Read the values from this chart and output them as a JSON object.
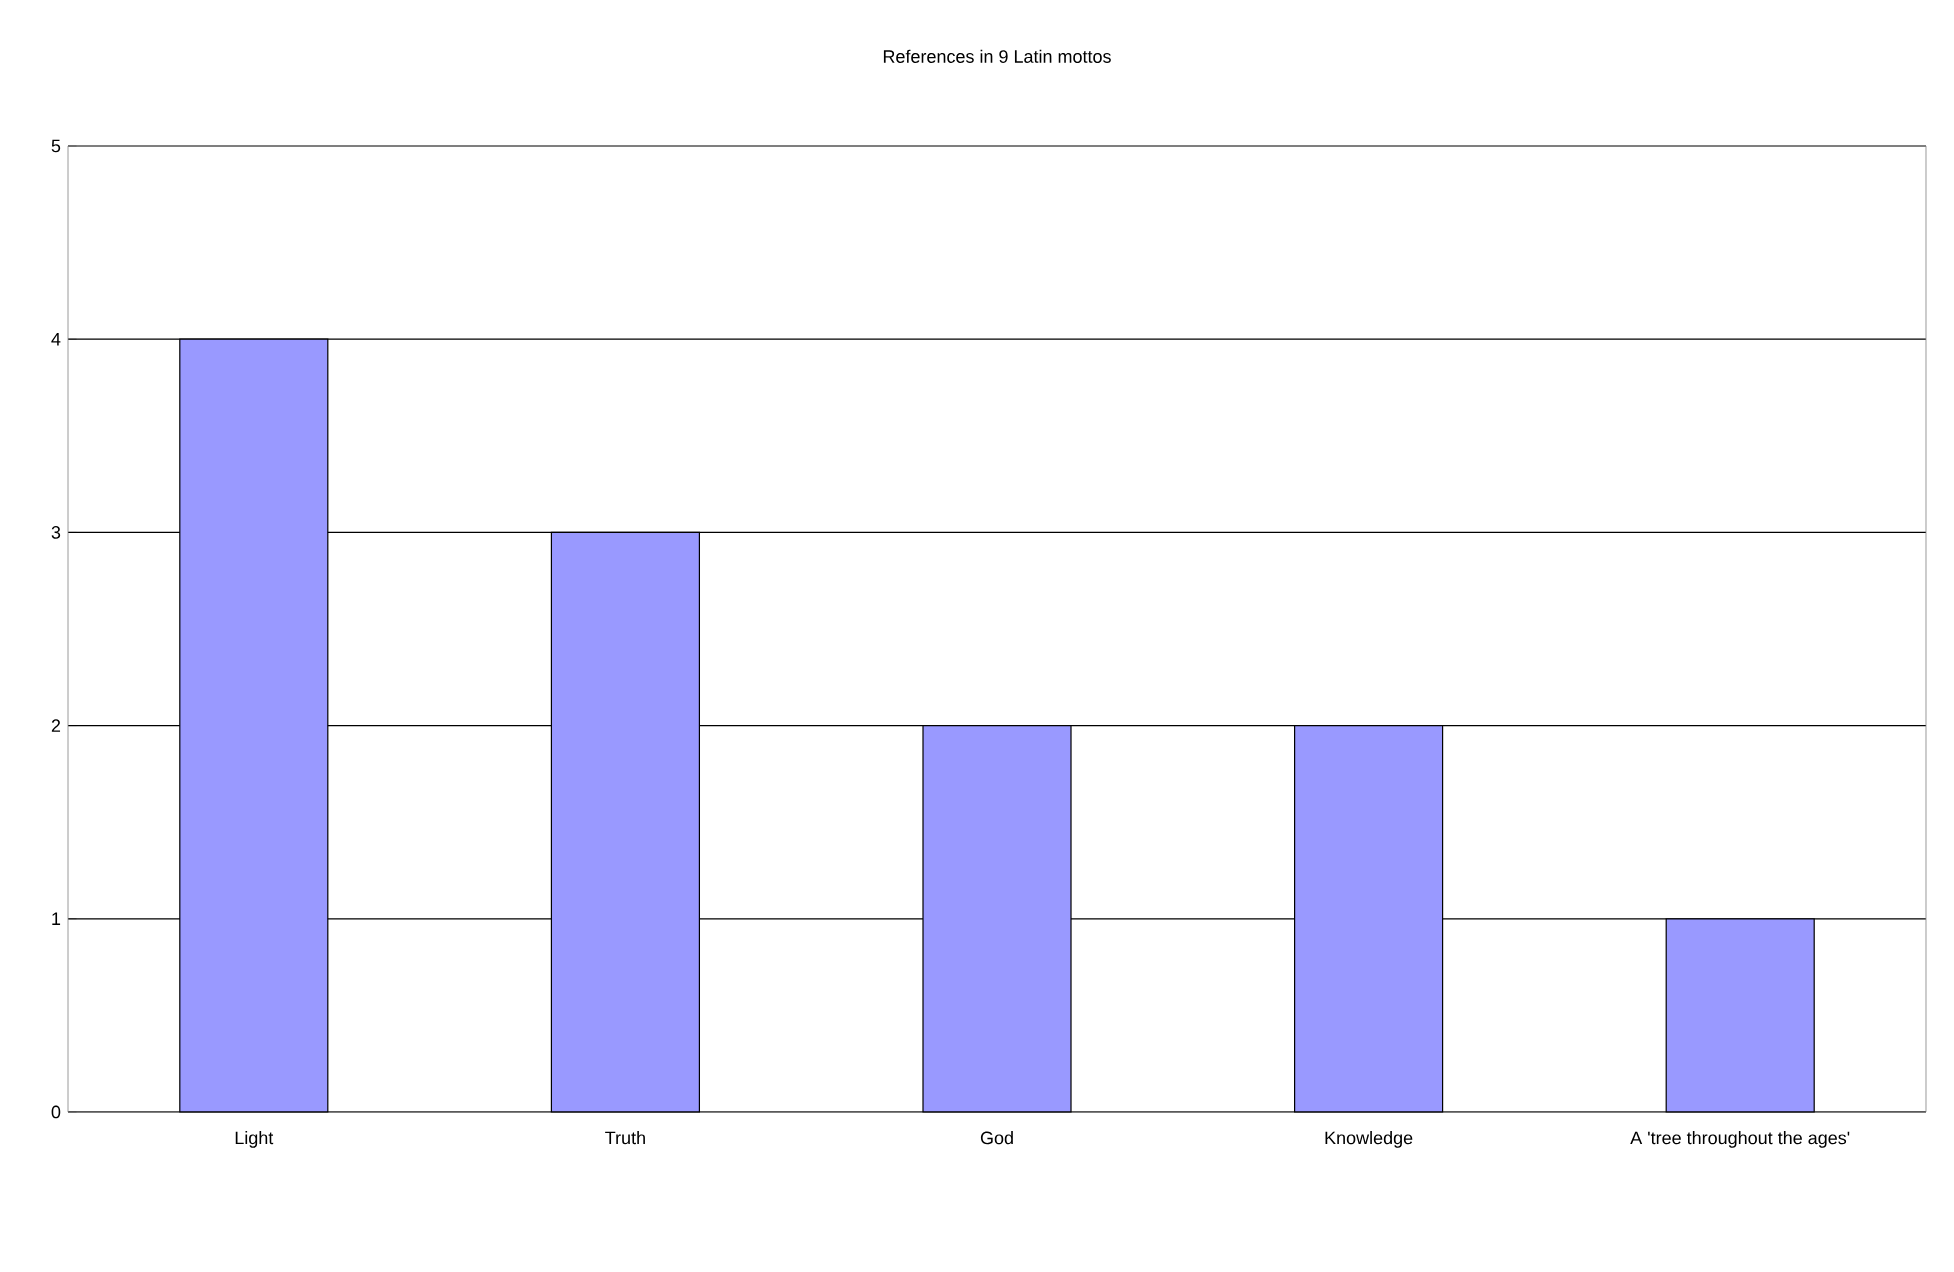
{
  "chart_data": {
    "type": "bar",
    "title": "References in 9 Latin mottos",
    "categories": [
      "Light",
      "Truth",
      "God",
      "Knowledge",
      "A 'tree throughout the ages'"
    ],
    "values": [
      4,
      3,
      2,
      2,
      1
    ],
    "color": "#9999ff",
    "ylim": [
      0,
      5
    ],
    "yticks": [
      0,
      1,
      2,
      3,
      4,
      5
    ],
    "grid": "y"
  }
}
